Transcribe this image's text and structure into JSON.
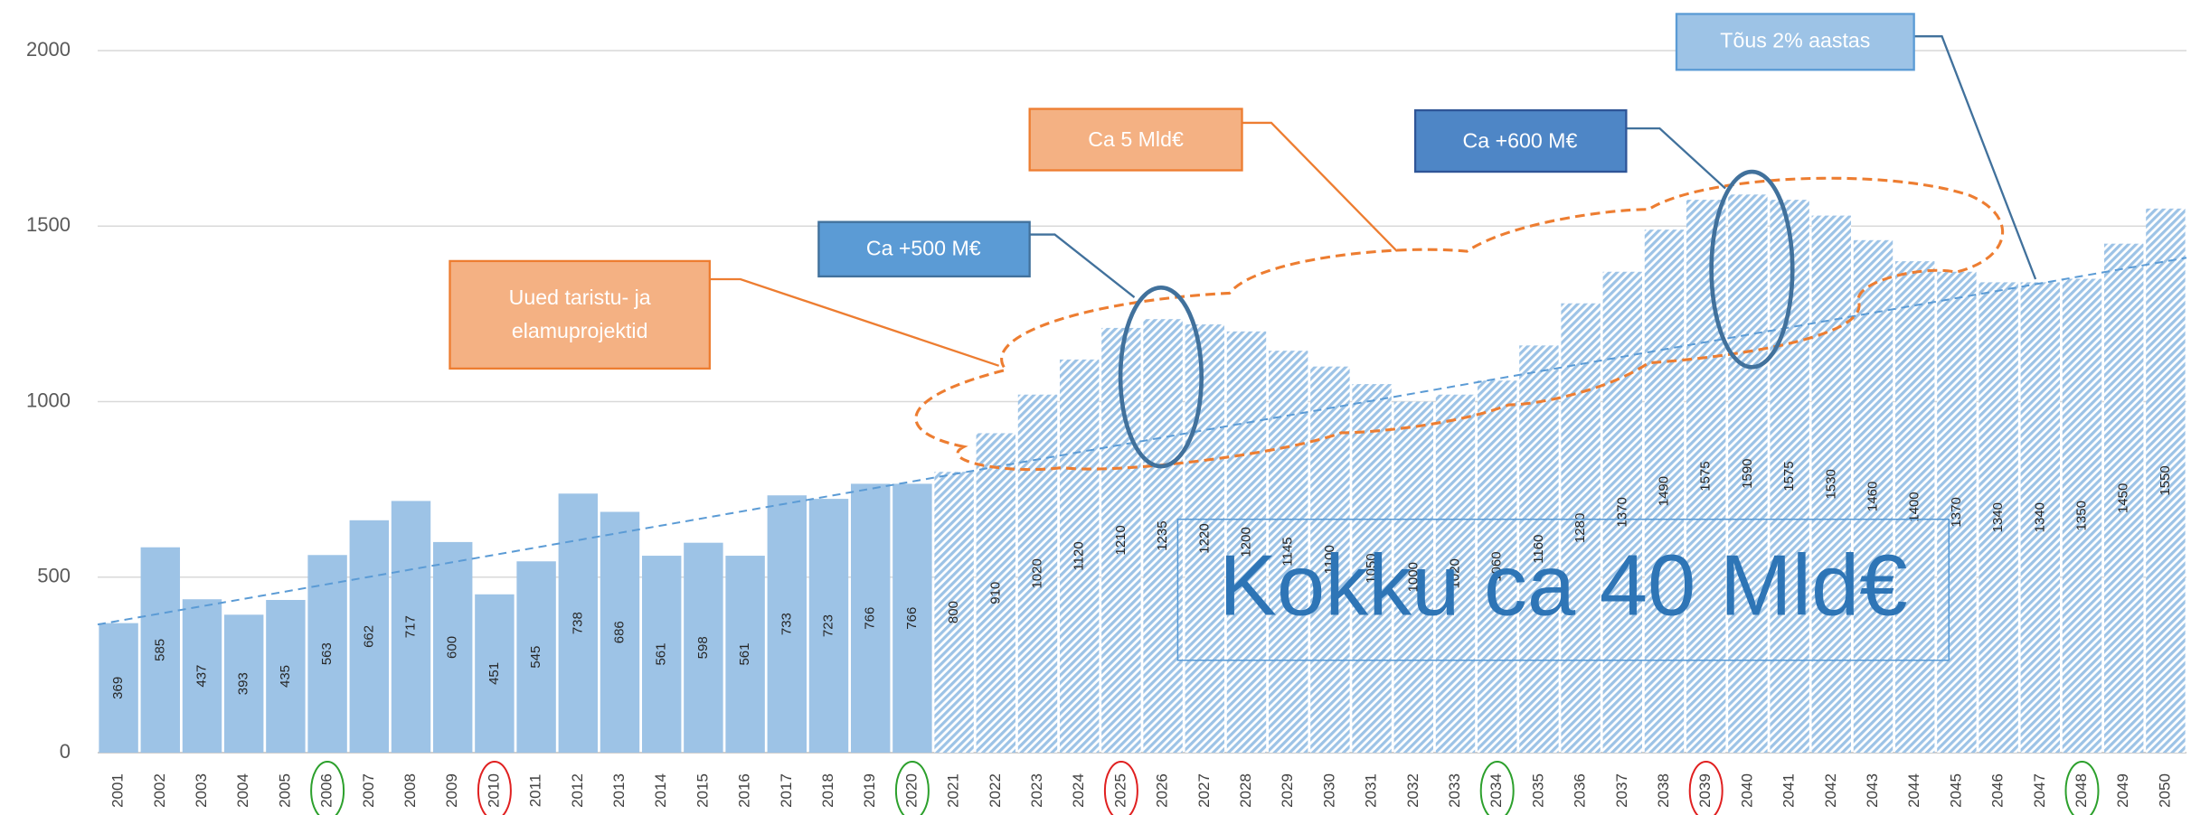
{
  "chart_data": {
    "type": "bar",
    "categories": [
      "2001",
      "2002",
      "2003",
      "2004",
      "2005",
      "2006",
      "2007",
      "2008",
      "2009",
      "2010",
      "2011",
      "2012",
      "2013",
      "2014",
      "2015",
      "2016",
      "2017",
      "2018",
      "2019",
      "2020",
      "2021",
      "2022",
      "2023",
      "2024",
      "2025",
      "2026",
      "2027",
      "2028",
      "2029",
      "2030",
      "2031",
      "2032",
      "2033",
      "2034",
      "2035",
      "2036",
      "2037",
      "2038",
      "2039",
      "2040",
      "2041",
      "2042",
      "2043",
      "2044",
      "2045",
      "2046",
      "2047",
      "2048",
      "2049",
      "2050"
    ],
    "series": [
      {
        "color": "#9dc3e6",
        "values": [
          369,
          585,
          437,
          393,
          435,
          563,
          662,
          717,
          600,
          451,
          545,
          738,
          686,
          561,
          598,
          561,
          733,
          723,
          766,
          766,
          null,
          null,
          null,
          null,
          null,
          null,
          null,
          null,
          null,
          null,
          null,
          null,
          null,
          null,
          null,
          null,
          null,
          null,
          null,
          null,
          null,
          null,
          null,
          null,
          null,
          null,
          null,
          null,
          null,
          null
        ]
      },
      {
        "color": "#9dc3e6",
        "pattern": "hatch",
        "values": [
          null,
          null,
          null,
          null,
          null,
          null,
          null,
          null,
          null,
          null,
          null,
          null,
          null,
          null,
          null,
          null,
          null,
          null,
          null,
          null,
          800,
          910,
          1020,
          1120,
          1210,
          1235,
          1220,
          1200,
          1145,
          1100,
          1050,
          1000,
          1020,
          1060,
          1160,
          1280,
          1370,
          1490,
          1575,
          1590,
          1575,
          1530,
          1460,
          1400,
          1370,
          1340,
          1340,
          1350,
          1450,
          1550
        ]
      }
    ],
    "ylim": [
      0,
      2000
    ],
    "yticks": [
      0,
      500,
      1000,
      1500,
      2000
    ],
    "grid": true,
    "trend": {
      "color": "#5b9bd5",
      "categories": [
        "2001",
        "2050"
      ],
      "values": [
        365,
        1410
      ]
    },
    "circled": [
      {
        "category": "2006",
        "color": "#2ca02c"
      },
      {
        "category": "2010",
        "color": "#e02020"
      },
      {
        "category": "2020",
        "color": "#2ca02c"
      },
      {
        "category": "2025",
        "color": "#e02020"
      },
      {
        "category": "2034",
        "color": "#2ca02c"
      },
      {
        "category": "2039",
        "color": "#e02020"
      },
      {
        "category": "2048",
        "color": "#2ca02c"
      }
    ],
    "annotations": [
      {
        "lines": [
          "Uued taristu- ja",
          "elamuprojektid"
        ]
      },
      {
        "text": "Ca +500 M€"
      },
      {
        "text": "Ca 5 Mld€"
      },
      {
        "text": "Ca +600 M€"
      },
      {
        "text": "Tõus 2% aastas"
      },
      {
        "text": "Kokku ca 40 Mld€"
      }
    ]
  }
}
